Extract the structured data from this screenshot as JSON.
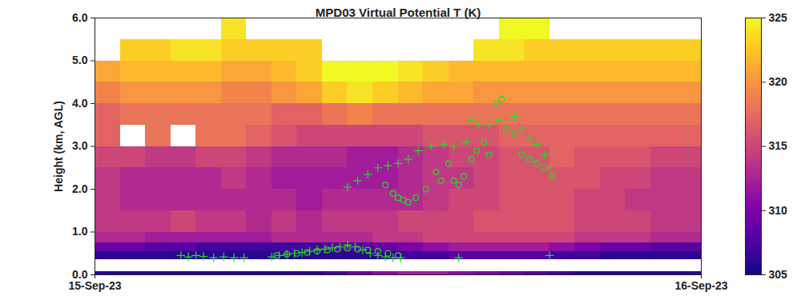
{
  "chart_data": {
    "type": "heatmap",
    "title": "MPD03 Virtual Potential T (K)",
    "y_label": "Height (km, AGL)",
    "xlim": [
      0,
      24
    ],
    "xticks": [
      {
        "value": 0,
        "label": "15-Sep-23"
      },
      {
        "value": 24,
        "label": "16-Sep-23"
      }
    ],
    "ylim": [
      0,
      6
    ],
    "yticks": [
      0,
      1,
      2,
      3,
      4,
      5,
      6
    ],
    "grid": true,
    "time_edges": [
      0,
      1,
      2,
      3,
      4,
      5,
      6,
      7,
      8,
      9,
      10,
      11,
      12,
      13,
      14,
      15,
      16,
      17,
      18,
      19,
      20,
      21,
      22,
      23,
      24
    ],
    "height_edges": [
      0,
      0.08,
      0.35,
      0.55,
      0.75,
      1.0,
      1.5,
      2.0,
      2.5,
      3.0,
      3.5,
      4.0,
      4.5,
      5.0,
      5.5,
      6.0
    ],
    "cells": [
      [
        306,
        306,
        306,
        306,
        306,
        306,
        306,
        306,
        306,
        307,
        309,
        311,
        312,
        312,
        311,
        310,
        309,
        308,
        307,
        306,
        306,
        306,
        306,
        306
      ],
      [
        null,
        null,
        null,
        null,
        null,
        null,
        null,
        null,
        null,
        null,
        null,
        null,
        null,
        null,
        null,
        null,
        null,
        null,
        null,
        null,
        null,
        null,
        null,
        null
      ],
      [
        306,
        306,
        306,
        306,
        306,
        306,
        306,
        306,
        306,
        306,
        306,
        306,
        307,
        307,
        308,
        308,
        308,
        308,
        307,
        307,
        306,
        306,
        306,
        306
      ],
      [
        309,
        309,
        308,
        308,
        307,
        307,
        307,
        307,
        307,
        308,
        308,
        309,
        310,
        311,
        312,
        312,
        312,
        312,
        311,
        310,
        309,
        309,
        308,
        308
      ],
      [
        313,
        313,
        312,
        312,
        312,
        312,
        312,
        313,
        313,
        313,
        313,
        314,
        314,
        315,
        315,
        315,
        315,
        315,
        315,
        314,
        314,
        314,
        313,
        313
      ],
      [
        314,
        314,
        314,
        315,
        314,
        314,
        313,
        314,
        313,
        314,
        314,
        314,
        315,
        315,
        315,
        316,
        316,
        316,
        316,
        315,
        315,
        315,
        314,
        314
      ],
      [
        314,
        313,
        313,
        313,
        313,
        313,
        313,
        313,
        312,
        313,
        313,
        313,
        313,
        314,
        315,
        315,
        316,
        316,
        316,
        315,
        315,
        314,
        314,
        314
      ],
      [
        314,
        313,
        313,
        313,
        313,
        314,
        313,
        312,
        312,
        312,
        312,
        312,
        313,
        314,
        314,
        315,
        316,
        316,
        316,
        316,
        315,
        315,
        314,
        314
      ],
      [
        315,
        315,
        314,
        314,
        315,
        315,
        314,
        313,
        313,
        313,
        312,
        312,
        313,
        314,
        315,
        315,
        316,
        316,
        317,
        316,
        316,
        316,
        315,
        315
      ],
      [
        317,
        null,
        318,
        null,
        318,
        318,
        317,
        316,
        315,
        315,
        315,
        315,
        315,
        316,
        316,
        316,
        317,
        317,
        317,
        317,
        317,
        317,
        317,
        317
      ],
      [
        317,
        318,
        318,
        318,
        318,
        318,
        318,
        317,
        317,
        318,
        319,
        318,
        318,
        318,
        318,
        318,
        318,
        318,
        318,
        318,
        318,
        318,
        318,
        318
      ],
      [
        319,
        320,
        320,
        320,
        320,
        319,
        319,
        320,
        321,
        323,
        324,
        323,
        322,
        321,
        321,
        320,
        320,
        320,
        320,
        320,
        320,
        320,
        320,
        320
      ],
      [
        321,
        322,
        322,
        322,
        322,
        321,
        321,
        322,
        323,
        325,
        325,
        325,
        324,
        323,
        322,
        322,
        322,
        322,
        322,
        322,
        322,
        322,
        322,
        322
      ],
      [
        null,
        323,
        323,
        324,
        324,
        323,
        323,
        323,
        323,
        null,
        null,
        null,
        null,
        null,
        null,
        324,
        324,
        323,
        323,
        323,
        323,
        323,
        323,
        323
      ],
      [
        null,
        null,
        null,
        null,
        null,
        324,
        null,
        null,
        null,
        null,
        null,
        null,
        null,
        null,
        null,
        null,
        325,
        325,
        null,
        null,
        null,
        null,
        null,
        null
      ]
    ],
    "colorbar": {
      "range": [
        305,
        325
      ],
      "ticks": [
        305,
        310,
        315,
        320,
        325
      ]
    },
    "markers": [
      {
        "marker": "plus",
        "color": "#22dd22",
        "x": [
          3.4,
          3.7,
          4.0,
          4.3,
          4.7,
          5.1,
          5.5,
          5.9,
          7.0,
          7.3,
          7.6,
          7.9,
          8.2,
          8.5,
          8.8,
          9.1,
          9.4,
          9.7,
          10.0,
          10.3,
          10.6,
          10.9,
          11.2,
          11.5,
          11.8,
          12.1,
          14.4,
          18.0,
          10.0,
          10.4,
          10.8,
          11.2,
          11.6,
          12.0,
          12.4,
          12.8,
          13.3,
          13.8,
          14.2,
          14.7,
          14.9,
          15.2,
          15.6,
          16.0,
          16.6,
          16.9,
          17.2,
          17.5,
          17.8,
          18.0
        ],
        "y": [
          0.45,
          0.42,
          0.45,
          0.43,
          0.4,
          0.42,
          0.4,
          0.4,
          0.42,
          0.45,
          0.48,
          0.5,
          0.52,
          0.55,
          0.58,
          0.6,
          0.63,
          0.65,
          0.7,
          0.65,
          0.58,
          0.5,
          0.45,
          0.42,
          0.4,
          0.4,
          0.4,
          0.45,
          2.05,
          2.2,
          2.35,
          2.5,
          2.55,
          2.6,
          2.7,
          2.9,
          3.0,
          3.05,
          3.0,
          3.1,
          3.6,
          3.5,
          3.5,
          3.6,
          3.7,
          3.4,
          3.2,
          3.05,
          2.8,
          2.5
        ]
      },
      {
        "marker": "circle",
        "color": "#22dd22",
        "x": [
          7.2,
          7.6,
          8.0,
          8.4,
          8.8,
          9.2,
          9.6,
          10.0,
          10.4,
          10.8,
          11.2,
          11.6,
          12.0,
          11.5,
          11.8,
          12.0,
          12.2,
          12.4,
          12.7,
          13.1,
          13.5,
          13.7,
          14.0,
          14.2,
          14.4,
          14.6,
          14.9,
          15.1,
          15.4,
          15.6,
          15.9,
          16.1,
          16.3,
          16.6,
          16.9,
          17.2,
          17.5,
          17.8,
          18.1
        ],
        "y": [
          0.45,
          0.48,
          0.5,
          0.52,
          0.55,
          0.58,
          0.6,
          0.62,
          0.6,
          0.58,
          0.55,
          0.5,
          0.45,
          2.1,
          1.9,
          1.8,
          1.75,
          1.7,
          1.8,
          2.0,
          2.4,
          2.2,
          2.6,
          2.2,
          2.1,
          2.3,
          2.7,
          2.9,
          3.1,
          2.8,
          4.0,
          4.1,
          3.4,
          3.3,
          2.8,
          2.7,
          2.6,
          2.5,
          2.3
        ]
      }
    ]
  }
}
